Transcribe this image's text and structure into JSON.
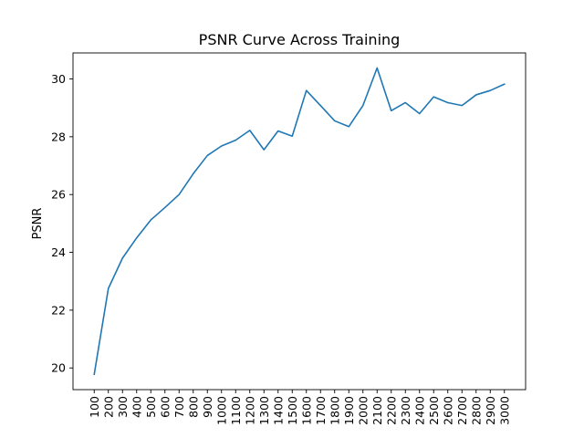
{
  "chart_data": {
    "type": "line",
    "title": "PSNR Curve Across Training",
    "xlabel": "",
    "ylabel": "PSNR",
    "x": [
      100,
      200,
      300,
      400,
      500,
      600,
      700,
      800,
      900,
      1000,
      1100,
      1200,
      1300,
      1400,
      1500,
      1600,
      1700,
      1800,
      1900,
      2000,
      2100,
      2200,
      2300,
      2400,
      2500,
      2600,
      2700,
      2800,
      2900,
      3000
    ],
    "x_tick_labels": [
      "100",
      "200",
      "300",
      "400",
      "500",
      "600",
      "700",
      "800",
      "900",
      "1000",
      "1100",
      "1200",
      "1300",
      "1400",
      "1500",
      "1600",
      "1700",
      "1800",
      "1900",
      "2000",
      "2100",
      "2200",
      "2300",
      "2400",
      "2500",
      "2600",
      "2700",
      "2800",
      "2900",
      "3000"
    ],
    "series": [
      {
        "values": [
          19.78,
          22.75,
          23.8,
          24.5,
          25.12,
          25.55,
          26.0,
          26.72,
          27.35,
          27.68,
          27.88,
          28.22,
          27.55,
          28.2,
          28.02,
          29.6,
          29.08,
          28.55,
          28.35,
          29.08,
          30.38,
          28.9,
          29.18,
          28.8,
          29.38,
          29.18,
          29.08,
          29.45,
          29.6,
          29.82
        ],
        "color": "#1f77b4"
      }
    ],
    "y_ticks": [
      20,
      22,
      24,
      26,
      28,
      30
    ],
    "xlim": [
      -50,
      3150
    ],
    "ylim": [
      19.25,
      30.9
    ],
    "grid": false,
    "legend": "none",
    "x_tick_rotation": "vertical"
  }
}
